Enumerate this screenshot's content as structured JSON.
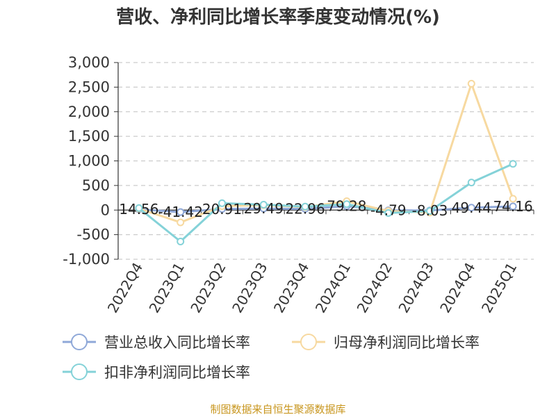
{
  "chart_data": {
    "type": "line",
    "title": "营收、净利同比增长率季度变动情况(%)",
    "categories": [
      "2022Q4",
      "2023Q1",
      "2023Q2",
      "2023Q3",
      "2023Q4",
      "2024Q1",
      "2024Q2",
      "2024Q3",
      "2024Q4",
      "2025Q1"
    ],
    "ylim": [
      -1000,
      3000
    ],
    "yticks": [
      -1000,
      -500,
      0,
      500,
      1000,
      1500,
      2000,
      2500,
      3000
    ],
    "ytick_labels": [
      "-1,000",
      "-500",
      "0",
      "500",
      "1,000",
      "1,500",
      "2,000",
      "2,500",
      "3,000"
    ],
    "grid": true,
    "legend_position": "bottom",
    "series": [
      {
        "name": "营业总收入同比增长率",
        "color": "#8fa8d8",
        "values": [
          14.56,
          -41.42,
          20.91,
          29.49,
          22.96,
          79.28,
          -4.79,
          -8.03,
          49.44,
          74.16
        ],
        "labels": [
          "14.56",
          "-41.42",
          "20.91",
          "29.49",
          "22.96",
          "79.28",
          "-4.79",
          "-8.03",
          "49.44",
          "74.16"
        ]
      },
      {
        "name": "归母净利润同比增长率",
        "color": "#f7d9a0",
        "values": [
          30,
          -250,
          80,
          100,
          60,
          180,
          -20,
          -50,
          2570,
          230
        ]
      },
      {
        "name": "扣非净利润同比增长率",
        "color": "#84d2d8",
        "values": [
          40,
          -640,
          140,
          110,
          70,
          120,
          -60,
          -20,
          560,
          940
        ]
      }
    ]
  },
  "source_text": "制图数据来自恒生聚源数据库"
}
